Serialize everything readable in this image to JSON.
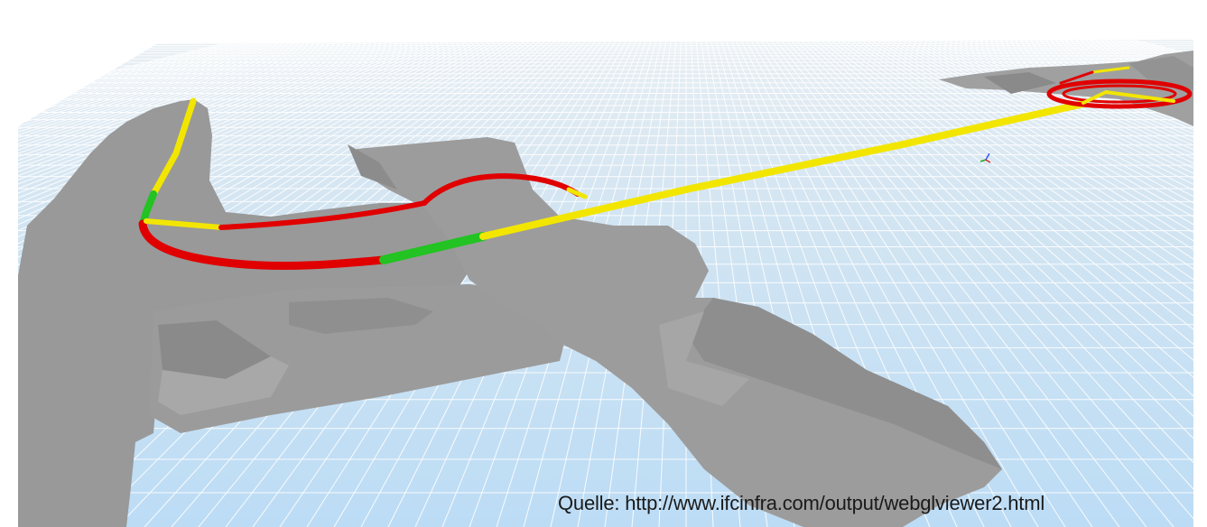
{
  "viewer": {
    "colors": {
      "sky": "#ffffff",
      "ground_near": "#bfdff5",
      "ground_far": "#e4eef5",
      "grid_line": "#ffffff",
      "terrain": "#9a9a9a",
      "terrain_shade": "#848484",
      "terrain_light": "#a9a9a9",
      "alignment_tangent": "#f2e600",
      "alignment_arc": "#e00000",
      "alignment_transition": "#22c322"
    },
    "icons": {
      "axis_gizmo": "axes-gizmo-icon"
    }
  },
  "caption": {
    "source": "Quelle: http://www.ifcinfra.com/output/webglviewer2.html"
  }
}
